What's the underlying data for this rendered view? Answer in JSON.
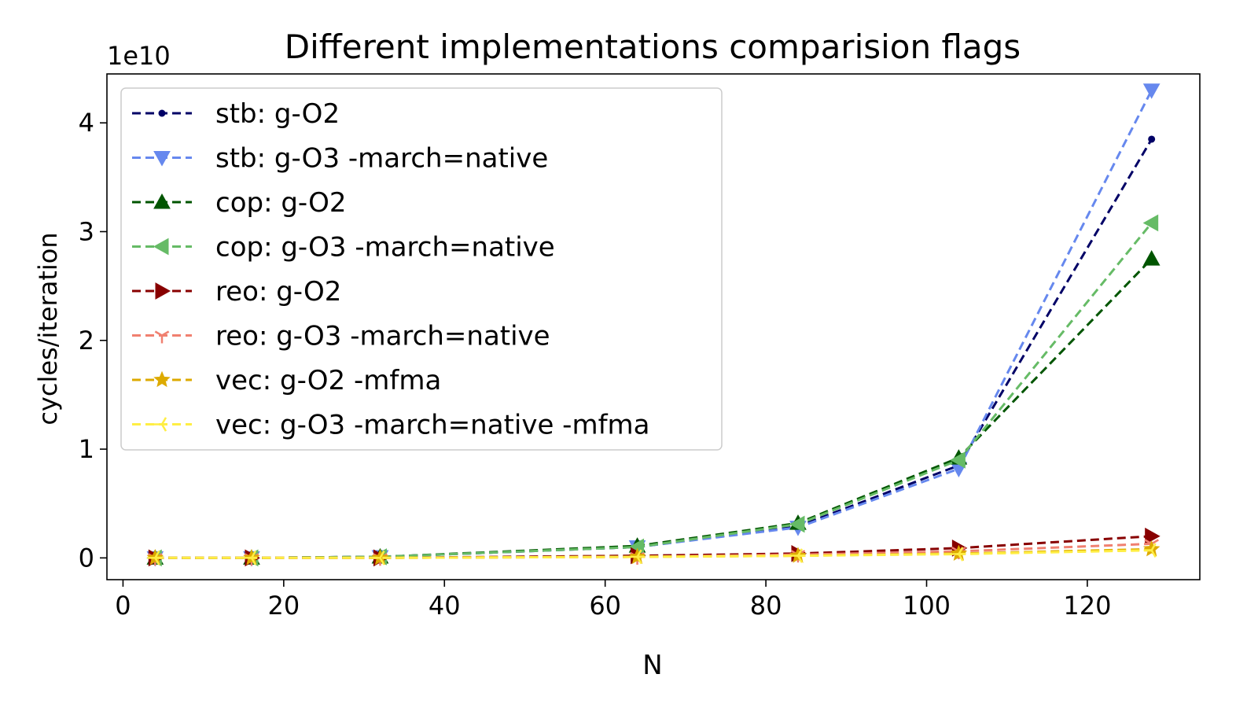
{
  "chart_data": {
    "type": "line",
    "title": "Different implementations comparision flags",
    "xlabel": "N",
    "ylabel": "cycles/iteration",
    "y_scale_label": "1e10",
    "xlim": [
      -2,
      134
    ],
    "ylim": [
      -0.2,
      4.45
    ],
    "y_unit_multiplier": 10000000000.0,
    "xticks": [
      0,
      20,
      40,
      60,
      80,
      100,
      120
    ],
    "yticks": [
      0,
      1,
      2,
      3,
      4
    ],
    "grid": false,
    "legend_position": "upper left",
    "x": [
      4,
      16,
      32,
      64,
      84,
      104,
      128
    ],
    "series": [
      {
        "name": "stb:  g-O2",
        "color": "#000066",
        "marker": "point",
        "values": [
          0.0,
          0.0,
          0.01,
          0.1,
          0.29,
          0.85,
          3.85
        ]
      },
      {
        "name": "stb:  g-O3 -march=native",
        "color": "#6688ee",
        "marker": "triangle-down",
        "values": [
          0.0,
          0.0,
          0.01,
          0.1,
          0.28,
          0.82,
          4.3
        ]
      },
      {
        "name": "cop:  g-O2",
        "color": "#005500",
        "marker": "triangle-up",
        "values": [
          0.0,
          0.0,
          0.01,
          0.11,
          0.32,
          0.92,
          2.75
        ]
      },
      {
        "name": "cop:  g-O3 -march=native",
        "color": "#66bb66",
        "marker": "triangle-left",
        "values": [
          0.0,
          0.0,
          0.01,
          0.1,
          0.31,
          0.9,
          3.08
        ]
      },
      {
        "name": "reo:  g-O2",
        "color": "#880000",
        "marker": "triangle-right",
        "values": [
          0.0,
          0.0,
          0.0,
          0.02,
          0.04,
          0.09,
          0.2
        ]
      },
      {
        "name": "reo:  g-O3 -march=native",
        "color": "#f08070",
        "marker": "tri-down",
        "values": [
          0.0,
          0.0,
          0.0,
          0.01,
          0.03,
          0.06,
          0.13
        ]
      },
      {
        "name": "vec:  g-O2 -mfma",
        "color": "#ddaa00",
        "marker": "star",
        "values": [
          0.0,
          0.0,
          0.0,
          0.01,
          0.02,
          0.04,
          0.08
        ]
      },
      {
        "name": "vec:  g-O3 -march=native -mfma",
        "color": "#ffee44",
        "marker": "tri-left",
        "values": [
          0.0,
          0.0,
          0.0,
          0.01,
          0.02,
          0.035,
          0.07
        ]
      }
    ]
  }
}
